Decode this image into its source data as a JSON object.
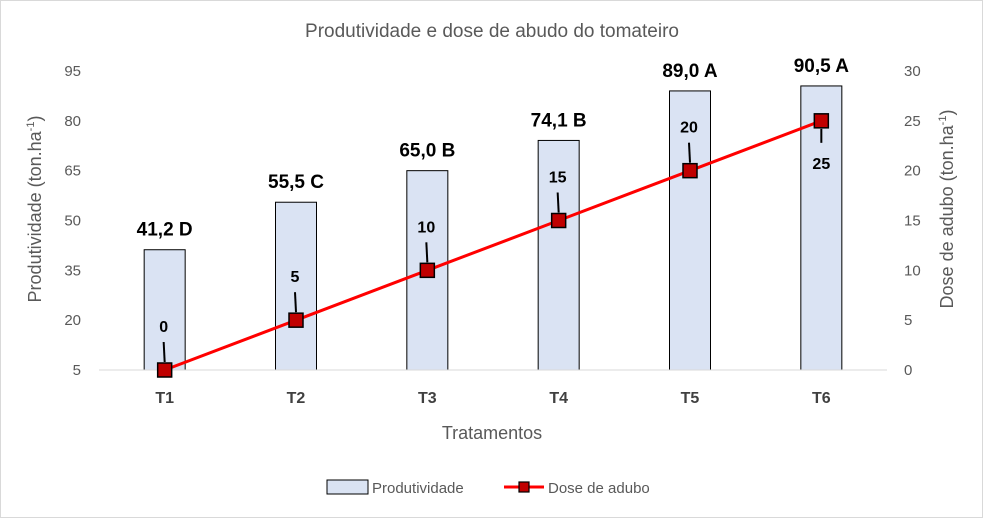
{
  "chart_data": {
    "type": "bar",
    "title": "Produtividade e dose de abudo do tomateiro",
    "xlabel": "Tratamentos",
    "ylabel": "Produtividade (ton.ha",
    "ylabel_sup": "-1",
    "ylabel_end": ")",
    "y2label": "Dose de adubo (ton.ha",
    "y2label_sup": "-1",
    "y2label_end": ")",
    "categories": [
      "T1",
      "T2",
      "T3",
      "T4",
      "T5",
      "T6"
    ],
    "series": [
      {
        "name": "Produtividade",
        "type": "bar",
        "axis": "left",
        "values": [
          41.2,
          55.5,
          65.0,
          74.1,
          89.0,
          90.5
        ],
        "labels": [
          "41,2 D",
          "55,5 C",
          "65,0 B",
          "74,1 B",
          "89,0 A",
          "90,5 A"
        ],
        "color": "#dae3f3",
        "border": "#000000"
      },
      {
        "name": "Dose de adubo",
        "type": "line",
        "axis": "right",
        "values": [
          0,
          5,
          10,
          15,
          20,
          25
        ],
        "labels": [
          "0",
          "5",
          "10",
          "15",
          "20",
          "25"
        ],
        "color": "#ff0000",
        "marker_color": "#c00000"
      }
    ],
    "ylim": [
      5,
      95
    ],
    "yticks": [
      5,
      20,
      35,
      50,
      65,
      80,
      95
    ],
    "y2lim": [
      0,
      30
    ],
    "y2ticks": [
      0,
      5,
      10,
      15,
      20,
      25,
      30
    ],
    "grid": false,
    "legend": "bottom"
  }
}
